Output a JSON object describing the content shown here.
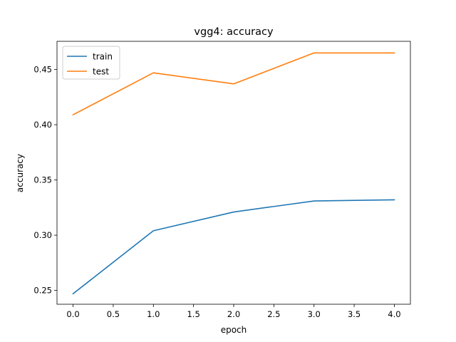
{
  "chart_data": {
    "type": "line",
    "title": "vgg4: accuracy",
    "xlabel": "epoch",
    "ylabel": "accuracy",
    "x": [
      0,
      1,
      2,
      3,
      4
    ],
    "xlim": [
      -0.2,
      4.2
    ],
    "ylim": [
      0.2375,
      0.4755
    ],
    "xticks": [
      "0.0",
      "0.5",
      "1.0",
      "1.5",
      "2.0",
      "2.5",
      "3.0",
      "3.5",
      "4.0"
    ],
    "yticks": [
      "0.25",
      "0.30",
      "0.35",
      "0.40",
      "0.45"
    ],
    "grid": false,
    "legend_position": "top-left",
    "series": [
      {
        "name": "train",
        "color": "#1f77b4",
        "values": [
          0.247,
          0.304,
          0.321,
          0.331,
          0.332
        ]
      },
      {
        "name": "test",
        "color": "#ff7f0e",
        "values": [
          0.409,
          0.447,
          0.437,
          0.465,
          0.465
        ]
      }
    ]
  }
}
